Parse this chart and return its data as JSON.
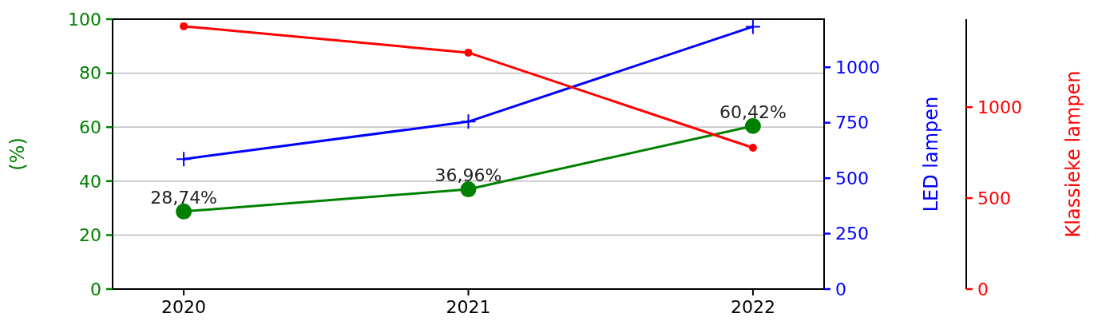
{
  "chart_data": {
    "type": "line",
    "x": [
      2020,
      2021,
      2022
    ],
    "xlim": [
      2019.75,
      2022.25
    ],
    "xticks": [
      2020,
      2021,
      2022
    ],
    "ylabel": "(%)",
    "ylim": [
      0,
      100
    ],
    "yticks": [
      0,
      20,
      40,
      60,
      80,
      100
    ],
    "y2label": "LED lampen",
    "y2lim": [
      0,
      1217
    ],
    "y2ticks": [
      0,
      250,
      500,
      750,
      1000
    ],
    "y3label": "Klassieke lampen",
    "y3lim": [
      0,
      1484
    ],
    "y3ticks": [
      0,
      500,
      1000
    ],
    "grid": "y",
    "line_style": "solid",
    "series": [
      {
        "color": "#008000",
        "values": [
          28.74,
          36.96,
          60.42
        ],
        "value_labels": [
          "28,74%",
          "36,96%",
          "60,42%"
        ],
        "marker": "circle"
      },
      {
        "color": "#0000ff",
        "values": [
          586,
          755,
          1183
        ],
        "axis": "y2",
        "marker": "cross"
      },
      {
        "color": "#ff0000",
        "values": [
          1445,
          1300,
          777
        ],
        "axis": "y3",
        "marker": "circle"
      }
    ]
  }
}
